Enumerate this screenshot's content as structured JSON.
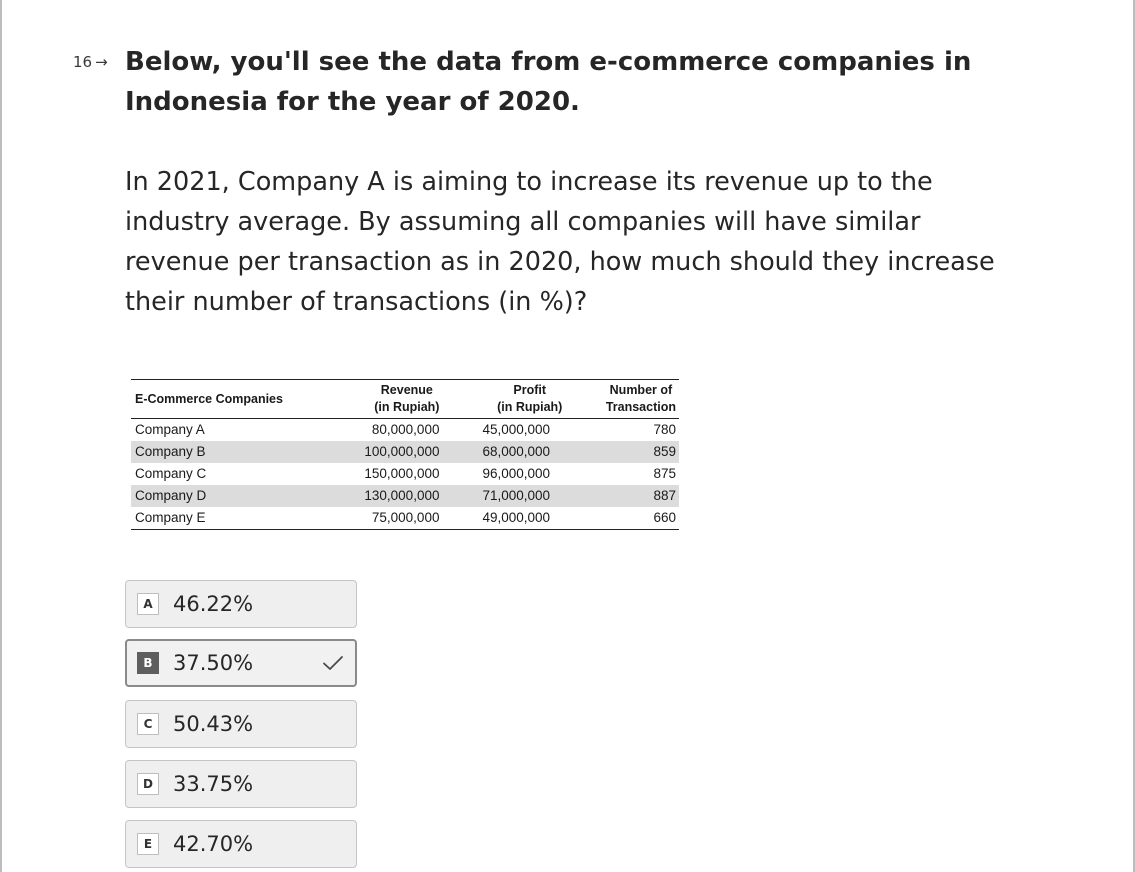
{
  "question": {
    "number": "16",
    "arrow": "→",
    "title": "Below, you'll see the data from e-commerce companies in Indonesia for the year of 2020.",
    "body": "In 2021, Company A is aiming to increase its revenue up to the industry average. By assuming all companies will have similar revenue per transaction as in 2020, how much should they increase their number of transactions (in %)?"
  },
  "table": {
    "headers": {
      "company": "E-Commerce Companies",
      "revenue_line1": "Revenue",
      "revenue_line2": "(in Rupiah)",
      "profit_line1": "Profit",
      "profit_line2": "(in Rupiah)",
      "transactions_line1": "Number of",
      "transactions_line2": "Transaction"
    },
    "rows": [
      {
        "company": "Company A",
        "revenue": "80,000,000",
        "profit": "45,000,000",
        "transactions": "780"
      },
      {
        "company": "Company B",
        "revenue": "100,000,000",
        "profit": "68,000,000",
        "transactions": "859"
      },
      {
        "company": "Company C",
        "revenue": "150,000,000",
        "profit": "96,000,000",
        "transactions": "875"
      },
      {
        "company": "Company D",
        "revenue": "130,000,000",
        "profit": "71,000,000",
        "transactions": "887"
      },
      {
        "company": "Company E",
        "revenue": "75,000,000",
        "profit": "49,000,000",
        "transactions": "660"
      }
    ]
  },
  "options": [
    {
      "key": "A",
      "label": "46.22%",
      "selected": false
    },
    {
      "key": "B",
      "label": "37.50%",
      "selected": true
    },
    {
      "key": "C",
      "label": "50.43%",
      "selected": false
    },
    {
      "key": "D",
      "label": "33.75%",
      "selected": false
    },
    {
      "key": "E",
      "label": "42.70%",
      "selected": false
    }
  ],
  "icons": {
    "question_arrow": "arrow-right-icon",
    "selected_marker": "checkmark-icon"
  }
}
